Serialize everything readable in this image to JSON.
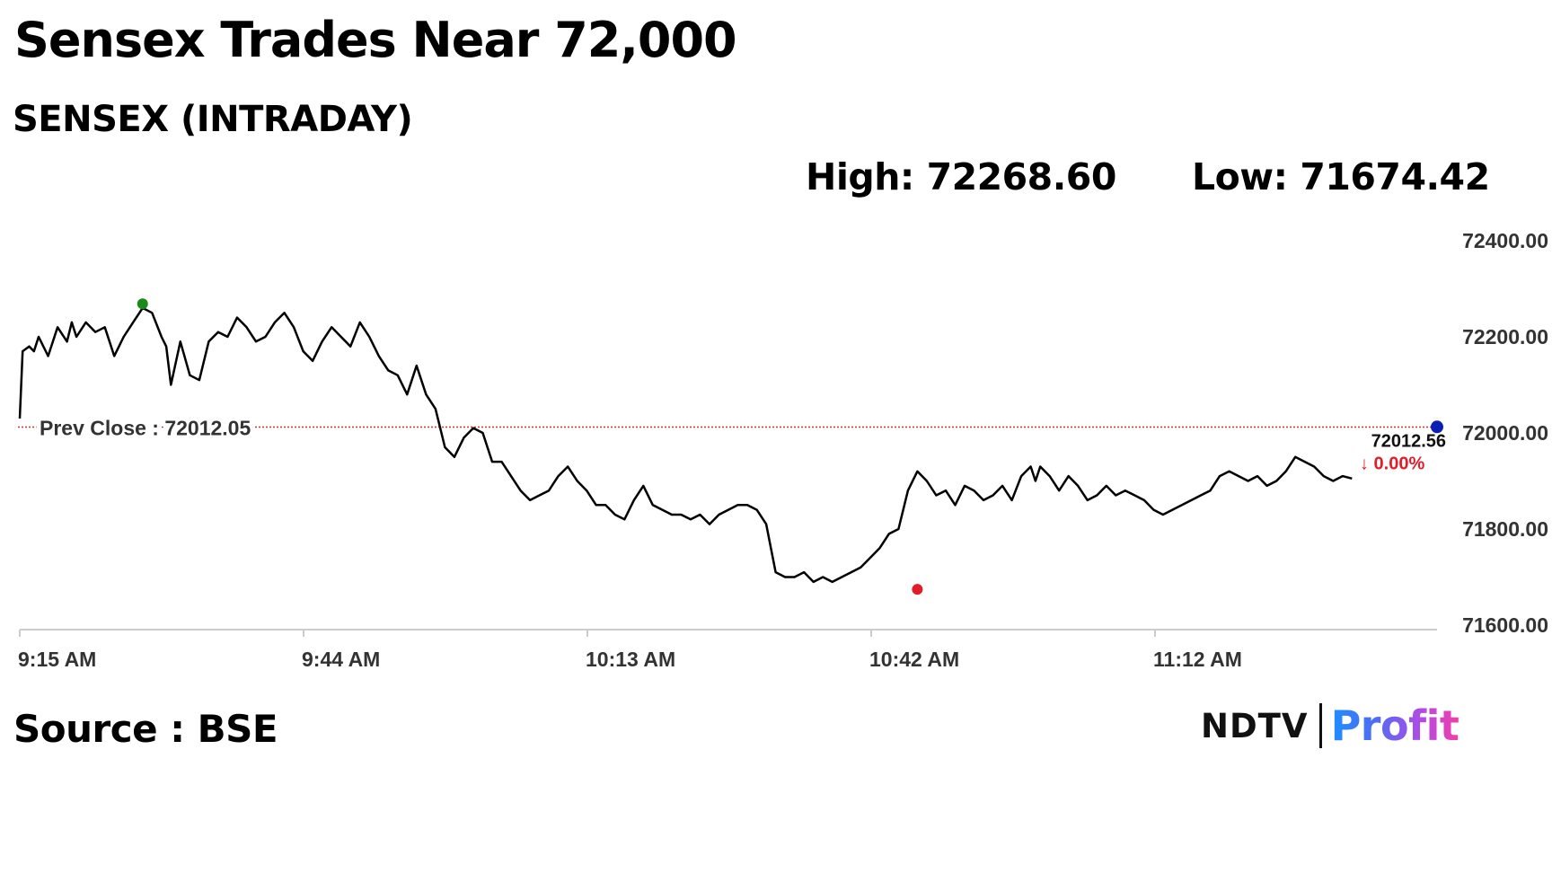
{
  "headline": "Sensex Trades Near 72,000",
  "subtitle": "SENSEX (INTRADAY)",
  "stats": {
    "high": "High: 72268.60",
    "low": "Low: 71674.42"
  },
  "source": "Source : BSE",
  "logo": {
    "ndtv": "NDTV",
    "profit": "Profit",
    "dot_color": "#e11d2a"
  },
  "colors": {
    "line": "#000000",
    "high_marker": "#1a8a1a",
    "low_marker": "#e11d2a",
    "current_marker": "#0a1fb4",
    "prev_close_line": "#c0392b",
    "change_negative": "#e11d2a",
    "axis": "#cccccc"
  },
  "chart_data": {
    "type": "line",
    "title": "SENSEX (INTRADAY)",
    "xlabel": "",
    "ylabel": "",
    "x_ticks": [
      "9:15 AM",
      "9:44 AM",
      "10:13 AM",
      "10:42 AM",
      "11:12 AM"
    ],
    "y_ticks": [
      "72400.00",
      "72200.00",
      "72000.00",
      "71800.00",
      "71600.00"
    ],
    "ylim": [
      71600,
      72400
    ],
    "x_range_minutes": [
      0,
      150
    ],
    "grid": false,
    "prev_close": {
      "label": "Prev Close : 72012.05",
      "value": 72012.05
    },
    "current": {
      "label": "72012.56",
      "change": "↓ 0.00%",
      "value": 72012.56
    },
    "high_point": {
      "t": 13,
      "value": 72268.6
    },
    "low_point": {
      "t": 95,
      "value": 71674.42
    },
    "series": [
      {
        "t": [
          0,
          0.3,
          1,
          1.5,
          2,
          3,
          4,
          5,
          5.5,
          6,
          7,
          8,
          9,
          10,
          11,
          12,
          13,
          14,
          15,
          15.5,
          16,
          17,
          18,
          19,
          20,
          21,
          22,
          23,
          24,
          25,
          26,
          27,
          28,
          29,
          30,
          31,
          32,
          33,
          34,
          35,
          36,
          37,
          38,
          39,
          40,
          41,
          42,
          43,
          44,
          45,
          46,
          47,
          48,
          49,
          50,
          51,
          52,
          53,
          54,
          55,
          56,
          57,
          58,
          59,
          60,
          61,
          62,
          63,
          64,
          65,
          66,
          67,
          68,
          69,
          70,
          71,
          72,
          73,
          74,
          75,
          76,
          77,
          78,
          79,
          80,
          81,
          82,
          83,
          84,
          85,
          86,
          87,
          88,
          89,
          90,
          91,
          92,
          93,
          94,
          95,
          96,
          97,
          98,
          99,
          100,
          101,
          102,
          103,
          104,
          105,
          106,
          107,
          107.5,
          108,
          109,
          110,
          111,
          112,
          113,
          114,
          115,
          116,
          117,
          118,
          119,
          120,
          121,
          122,
          123,
          124,
          125,
          126,
          127,
          128,
          129,
          130,
          131,
          132,
          133,
          134,
          135,
          136,
          137,
          138,
          139,
          140,
          141
        ],
        "values": [
          72030,
          72170,
          72180,
          72170,
          72200,
          72160,
          72220,
          72190,
          72230,
          72200,
          72230,
          72210,
          72220,
          72160,
          72200,
          72230,
          72260,
          72250,
          72200,
          72180,
          72100,
          72190,
          72120,
          72110,
          72190,
          72210,
          72200,
          72240,
          72220,
          72190,
          72200,
          72230,
          72250,
          72220,
          72170,
          72150,
          72190,
          72220,
          72200,
          72180,
          72230,
          72200,
          72160,
          72130,
          72120,
          72080,
          72140,
          72080,
          72050,
          71970,
          71950,
          71990,
          72010,
          72000,
          71940,
          71940,
          71910,
          71880,
          71860,
          71870,
          71880,
          71910,
          71930,
          71900,
          71880,
          71850,
          71850,
          71830,
          71820,
          71860,
          71890,
          71850,
          71840,
          71830,
          71830,
          71820,
          71830,
          71810,
          71830,
          71840,
          71850,
          71850,
          71840,
          71810,
          71710,
          71700,
          71700,
          71710,
          71690,
          71700,
          71690,
          71700,
          71710,
          71720,
          71740,
          71760,
          71790,
          71800,
          71880,
          71920,
          71900,
          71870,
          71880,
          71850,
          71890,
          71880,
          71860,
          71870,
          71890,
          71860,
          71910,
          71930,
          71900,
          71930,
          71910,
          71880,
          71910,
          71890,
          71860,
          71870,
          71890,
          71870,
          71880,
          71870,
          71860,
          71840,
          71830,
          71840,
          71850,
          71860,
          71870,
          71880,
          71910,
          71920,
          71910,
          71900,
          71910,
          71890,
          71900,
          71920,
          71950,
          71940,
          71930,
          71910,
          71900,
          71910,
          71905
        ]
      }
    ]
  }
}
